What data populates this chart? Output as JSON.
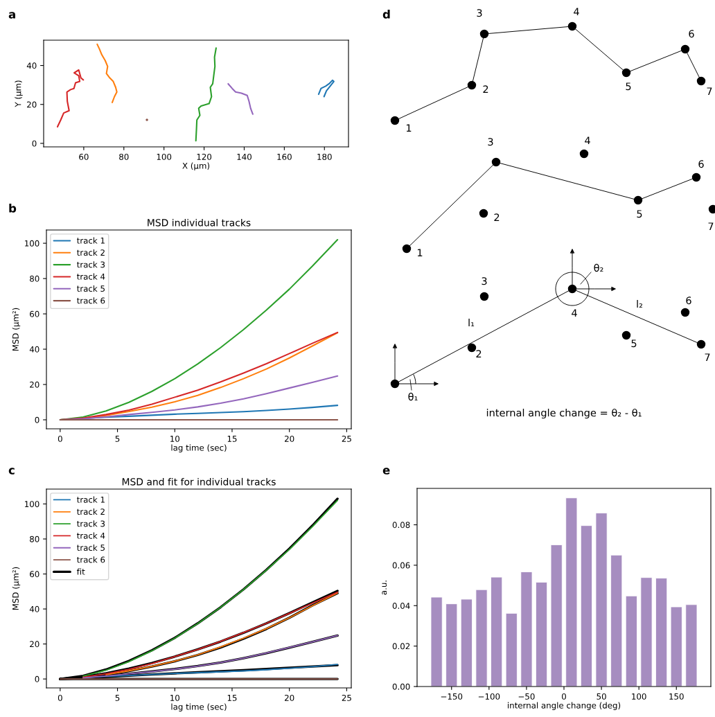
{
  "chart_data": [
    {
      "type": "line",
      "xlabel": "X (µm)",
      "ylabel": "Y (µm)",
      "xlim": [
        40,
        192
      ],
      "ylim": [
        -1.8,
        53
      ],
      "xticks": [
        60,
        80,
        100,
        120,
        140,
        160,
        180
      ],
      "yticks": [
        0,
        20,
        40
      ],
      "annotations": [
        "a"
      ],
      "series": [
        {
          "color": "#1f77b4",
          "x": [
            177.1,
            178.3,
            180.6,
            182.3,
            184,
            184.7,
            181,
            179.8
          ],
          "values": [
            25.2,
            28.2,
            29.4,
            30.6,
            32.4,
            31.8,
            27,
            24
          ]
        },
        {
          "color": "#ff7f0e",
          "x": [
            66.7,
            67.8,
            69,
            70.7,
            71.9,
            71.3,
            73,
            74.7,
            75.9,
            76.5,
            75.3,
            74.2
          ],
          "values": [
            50.9,
            48.5,
            45.5,
            42.5,
            39.5,
            35.9,
            33.6,
            31.8,
            28.8,
            26.4,
            24,
            21
          ]
        },
        {
          "color": "#2ca02c",
          "x": [
            115.9,
            116.2,
            116.4,
            117.9,
            117.3,
            118.5,
            122.5,
            123.7,
            123.1,
            124.3,
            124.8,
            125.4,
            125.2,
            126
          ],
          "values": [
            1.3,
            7.3,
            12,
            14.4,
            18,
            19.2,
            20.4,
            24,
            28.8,
            30.6,
            34.7,
            39.5,
            44.3,
            49
          ]
        },
        {
          "color": "#d62728",
          "x": [
            46.9,
            48.5,
            50,
            52.7,
            51.8,
            51.6,
            53.4,
            55.1,
            55.9,
            58,
            57.5,
            55.2,
            57.5,
            58.6,
            59.8
          ],
          "values": [
            8.5,
            12,
            15.6,
            16.8,
            21.6,
            26.4,
            27.6,
            28.2,
            31.1,
            31.8,
            34.7,
            36.2,
            37.7,
            33.6,
            32.6
          ]
        },
        {
          "color": "#9467bd",
          "x": [
            132,
            134,
            135.7,
            138.6,
            141.5,
            142.4,
            143.2,
            144.3
          ],
          "values": [
            30.6,
            28.2,
            26.4,
            25.8,
            24.6,
            21.6,
            18,
            15
          ]
        },
        {
          "color": "#8c564b",
          "type": "scatter",
          "marker": "circle",
          "x": [
            91.5
          ],
          "values": [
            12.1
          ]
        }
      ]
    },
    {
      "type": "line",
      "title": "MSD individual tracks",
      "xlabel": "lag time (sec)",
      "ylabel": "MSD (µm²)",
      "xlim": [
        -1.2,
        25.4
      ],
      "ylim": [
        -5.1,
        107.5
      ],
      "xticks": [
        0,
        5,
        10,
        15,
        20,
        25
      ],
      "yticks": [
        0,
        20,
        40,
        60,
        80,
        100
      ],
      "legend": "top left",
      "annotations": [
        "b"
      ],
      "x": [
        0,
        2,
        4,
        6,
        8,
        10,
        12,
        14,
        16,
        18,
        20,
        22,
        24.2
      ],
      "series": [
        {
          "name": "track 1",
          "color": "#1f77b4",
          "values": [
            0,
            0.8,
            1.5,
            2.0,
            2.6,
            3.2,
            3.6,
            4.1,
            4.6,
            5.3,
            6.1,
            7.0,
            8.2
          ]
        },
        {
          "name": "track 2",
          "color": "#ff7f0e",
          "values": [
            0,
            0.8,
            2.5,
            4.7,
            7.2,
            10.2,
            13.8,
            18.3,
            23.3,
            28.8,
            35,
            41.8,
            49.3
          ]
        },
        {
          "name": "track 3",
          "color": "#2ca02c",
          "values": [
            0,
            1.6,
            5.0,
            9.9,
            16.1,
            23.3,
            31.6,
            40.9,
            51.1,
            62.2,
            74,
            87,
            102
          ]
        },
        {
          "name": "track 4",
          "color": "#d62728",
          "values": [
            0,
            1.0,
            3.0,
            5.5,
            8.8,
            12.8,
            16.8,
            21.5,
            26.5,
            31.8,
            37.5,
            43.3,
            49.5
          ]
        },
        {
          "name": "track 5",
          "color": "#9467bd",
          "values": [
            0,
            0.6,
            1.7,
            3.0,
            4.2,
            5.6,
            7.3,
            9.4,
            11.9,
            14.8,
            18,
            21.2,
            24.8
          ]
        },
        {
          "name": "track 6",
          "color": "#8c564b",
          "values": [
            0,
            0,
            0,
            0,
            0,
            0,
            0,
            0,
            0,
            0,
            0,
            0,
            0
          ]
        }
      ]
    },
    {
      "type": "line",
      "title": "MSD and fit for individual tracks",
      "xlabel": "lag time (sec)",
      "ylabel": "MSD (µm²)",
      "xlim": [
        -1.2,
        25.4
      ],
      "ylim": [
        -5.1,
        108.5
      ],
      "xticks": [
        0,
        5,
        10,
        15,
        20,
        25
      ],
      "yticks": [
        0,
        20,
        40,
        60,
        80,
        100
      ],
      "legend": "top left",
      "annotations": [
        "c"
      ],
      "x": [
        0,
        2,
        4,
        6,
        8,
        10,
        12,
        14,
        16,
        18,
        20,
        22,
        24.2
      ],
      "series": [
        {
          "name": "track 1",
          "color": "#1f77b4",
          "values": [
            null,
            0.8,
            1.5,
            2.0,
            2.6,
            3.2,
            3.6,
            4.1,
            4.6,
            5.3,
            6.1,
            7.0,
            8.3
          ]
        },
        {
          "name": "track 2",
          "color": "#ff7f0e",
          "values": [
            null,
            null,
            2.5,
            4.7,
            7.2,
            10.2,
            13.8,
            18.3,
            23.3,
            28.8,
            35,
            41.8,
            49.1
          ]
        },
        {
          "name": "track 3",
          "color": "#2ca02c",
          "values": [
            null,
            1.6,
            5.0,
            9.9,
            16.1,
            23.3,
            31.6,
            40.9,
            51.1,
            62.2,
            74,
            87,
            102
          ]
        },
        {
          "name": "track 4",
          "color": "#d62728",
          "values": [
            null,
            1.0,
            3.0,
            5.5,
            8.8,
            12.8,
            16.8,
            21.5,
            26.5,
            31.8,
            37.5,
            43.3,
            49.6
          ]
        },
        {
          "name": "track 5",
          "color": "#9467bd",
          "values": [
            null,
            0.6,
            1.7,
            3.0,
            4.2,
            5.6,
            7.3,
            9.4,
            11.9,
            14.8,
            18,
            21.2,
            24.8
          ]
        },
        {
          "name": "track 6",
          "color": "#8c564b",
          "values": [
            0,
            0,
            0,
            0,
            0,
            0,
            0,
            0,
            0,
            0,
            0,
            0,
            0
          ]
        },
        {
          "name": "fit",
          "color": "#000000",
          "values": [
            0,
            0.5,
            1.2,
            1.9,
            2.6,
            3.2,
            3.8,
            4.4,
            5.0,
            5.7,
            6.4,
            7.1,
            7.9
          ]
        },
        {
          "color": "#000000",
          "values": [
            0,
            0.9,
            2.5,
            4.6,
            7.1,
            10.1,
            13.7,
            18.0,
            23.0,
            28.6,
            35.0,
            42.0,
            49.0
          ]
        },
        {
          "color": "#000000",
          "values": [
            0,
            1.8,
            5.4,
            10.3,
            16.4,
            23.5,
            31.8,
            41.0,
            51.2,
            62.4,
            74.5,
            87.6,
            103
          ]
        },
        {
          "color": "#000000",
          "values": [
            0,
            1.2,
            3.3,
            5.9,
            9.1,
            12.8,
            16.9,
            21.4,
            26.4,
            31.8,
            37.6,
            43.7,
            50.3
          ]
        },
        {
          "color": "#000000",
          "values": [
            0,
            0.6,
            1.7,
            3.0,
            4.3,
            5.7,
            7.4,
            9.4,
            11.9,
            14.7,
            17.9,
            21.2,
            24.8
          ]
        },
        {
          "color": "#000000",
          "values": [
            0,
            0,
            0,
            0,
            0,
            0,
            0,
            0,
            0,
            0,
            0,
            0,
            0
          ]
        }
      ]
    },
    {
      "type": "other",
      "annotations": [
        "d",
        "1",
        "2",
        "3",
        "4",
        "5",
        "6",
        "7",
        "1",
        "2",
        "3",
        "4",
        "5",
        "6",
        "7",
        "2",
        "3",
        "4",
        "5",
        "6",
        "7",
        "θ₂",
        "l₂",
        "l₁",
        "θ₁",
        "internal angle change = θ₂ - θ₁"
      ]
    },
    {
      "type": "histogram",
      "xlabel": "internal angle change (deg)",
      "ylabel": "a.u.",
      "color": "#a68dc0",
      "xlim": [
        -196,
        196
      ],
      "ylim": [
        0,
        0.098
      ],
      "xticks": [
        {
          "value": -150,
          "label": "−150"
        },
        {
          "value": -100,
          "label": "−100"
        },
        {
          "value": -50,
          "label": "−50"
        },
        0,
        50,
        100,
        150
      ],
      "yticks": [
        {
          "value": 0,
          "label": "0.00"
        },
        0.02,
        0.04,
        0.06,
        0.08
      ],
      "annotations": [
        "e"
      ],
      "bins": [
        -180,
        -160,
        -140,
        -120,
        -100,
        -80,
        -60,
        -40,
        -20,
        0,
        20,
        40,
        60,
        80,
        100,
        120,
        140,
        160,
        180
      ],
      "values": [
        0.0442,
        0.0409,
        0.0432,
        0.0479,
        0.0541,
        0.0362,
        0.0567,
        0.0516,
        0.0701,
        0.0933,
        0.0796,
        0.0858,
        0.065,
        0.0448,
        0.0539,
        0.0536,
        0.0394,
        0.0405
      ]
    }
  ]
}
